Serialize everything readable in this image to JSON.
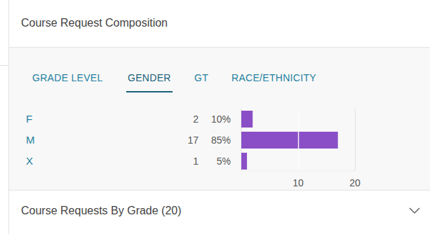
{
  "header": {
    "title": "Course Request Composition"
  },
  "tabs": {
    "items": [
      "GRADE LEVEL",
      "GENDER",
      "GT",
      "RACE/ETHNICITY"
    ],
    "active": 1
  },
  "chart_data": {
    "type": "bar",
    "orientation": "horizontal",
    "categories": [
      "F",
      "M",
      "X"
    ],
    "values": [
      2,
      17,
      1
    ],
    "percentages": [
      10,
      85,
      5
    ],
    "percentage_labels": [
      "10%",
      "85%",
      "5%"
    ],
    "color": "#8a4fc6",
    "xlim": [
      0,
      20
    ],
    "xticks": [
      10,
      20
    ],
    "grid": true,
    "data_labels": true
  },
  "footer": {
    "title": "Course Requests By Grade (20)"
  }
}
